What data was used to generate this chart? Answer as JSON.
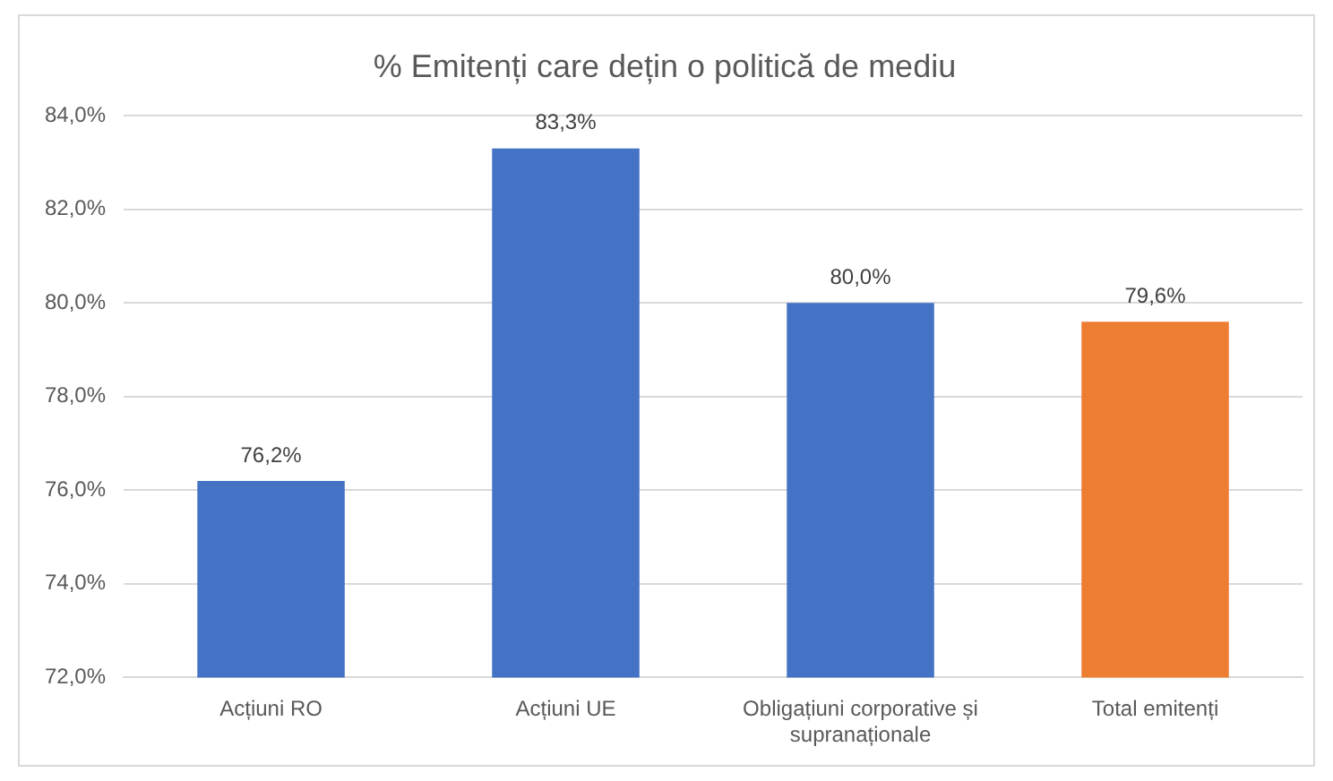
{
  "chart_data": {
    "type": "bar",
    "title": "% Emitenți care dețin o politică de mediu",
    "categories": [
      "Acțiuni RO",
      "Acțiuni UE",
      "Obligațiuni corporative și supranaționale",
      "Total emitenți"
    ],
    "values": [
      76.2,
      83.3,
      80.0,
      79.6
    ],
    "colors": [
      "#4472c4",
      "#4472c4",
      "#4472c4",
      "#ed7d31"
    ],
    "value_labels": [
      "76,2%",
      "83,3%",
      "80,0%",
      "79,6%"
    ],
    "ylim": [
      72,
      84
    ],
    "yticks": [
      {
        "value": 72,
        "label": "72,0%"
      },
      {
        "value": 74,
        "label": "74,0%"
      },
      {
        "value": 76,
        "label": "76,0%"
      },
      {
        "value": 78,
        "label": "78,0%"
      },
      {
        "value": 80,
        "label": "80,0%"
      },
      {
        "value": 82,
        "label": "82,0%"
      },
      {
        "value": 84,
        "label": "84,0%"
      }
    ],
    "grid": "y",
    "legend": false
  }
}
